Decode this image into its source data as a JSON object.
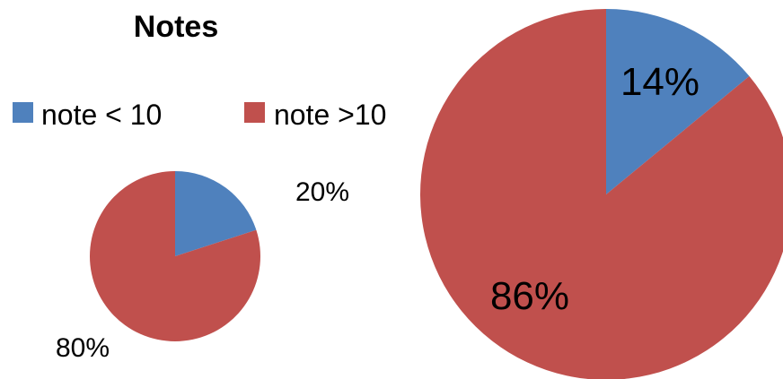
{
  "chart_data": {
    "type": "pie",
    "title": "Notes",
    "colors": {
      "note_lt_10": "#4F81BD",
      "note_gt_10": "#C0504D"
    },
    "legend": {
      "placement": "top-left",
      "items": [
        {
          "label": "note < 10",
          "color": "#4F81BD"
        },
        {
          "label": "note >10",
          "color": "#C0504D"
        }
      ]
    },
    "pies": [
      {
        "slices": [
          {
            "label": "note < 10",
            "value": 20,
            "text": "20%",
            "color": "#4F81BD"
          },
          {
            "label": "note >10",
            "value": 80,
            "text": "80%",
            "color": "#C0504D"
          }
        ]
      },
      {
        "slices": [
          {
            "label": "note < 10",
            "value": 14,
            "text": "14%",
            "color": "#4F81BD"
          },
          {
            "label": "note >10",
            "value": 86,
            "text": "86%",
            "color": "#C0504D"
          }
        ]
      }
    ]
  }
}
